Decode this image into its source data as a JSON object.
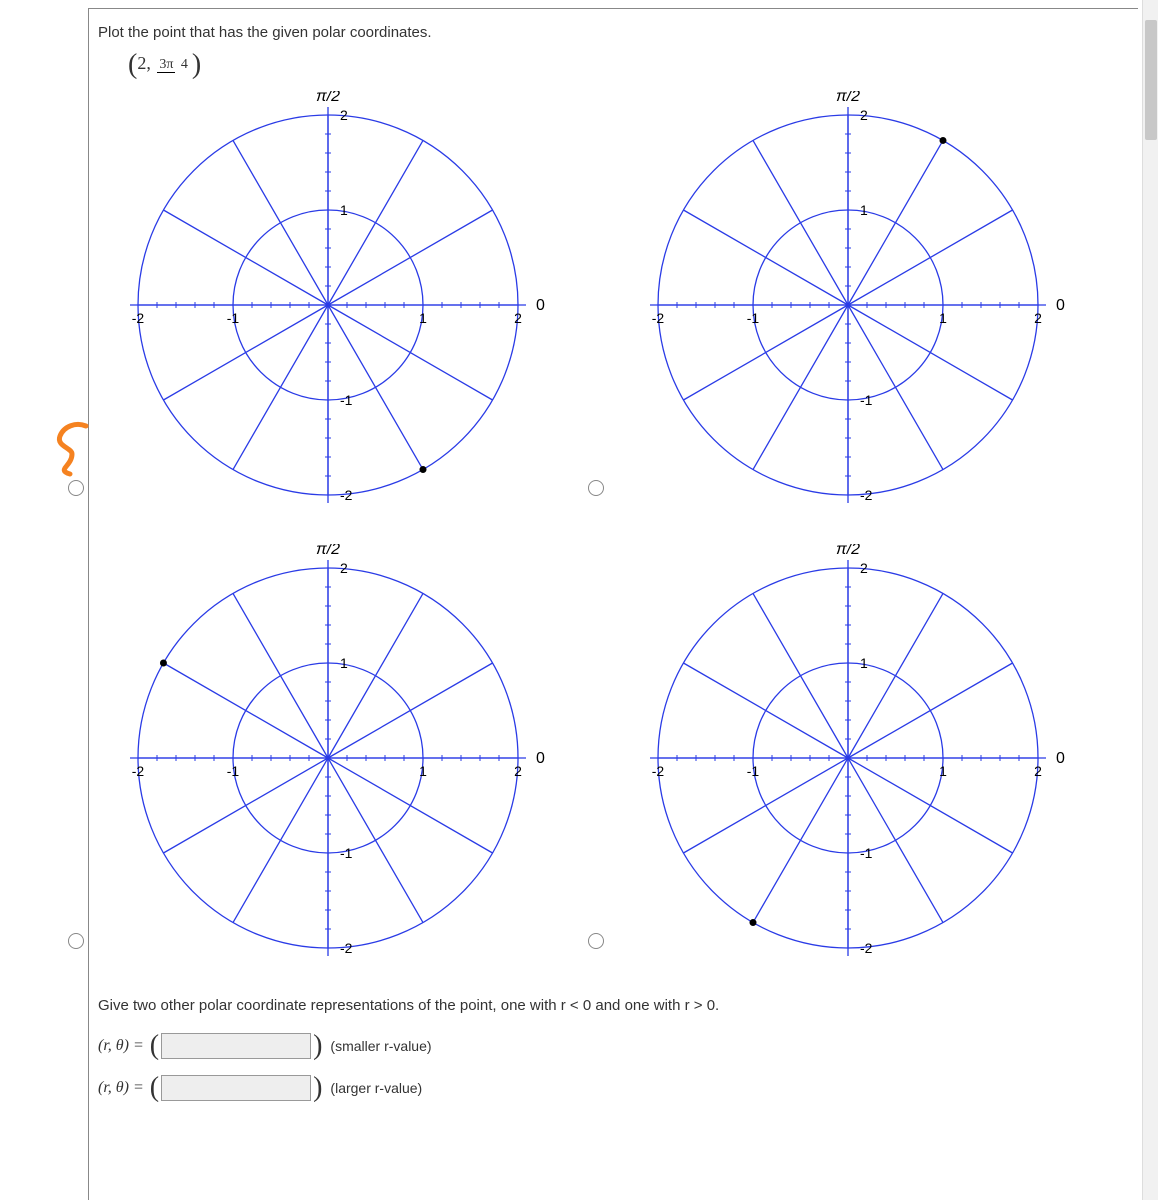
{
  "prompt": "Plot the point that has the given polar coordinates.",
  "given": {
    "r": "2",
    "theta_num": "3π",
    "theta_den": "4"
  },
  "polar": {
    "rmax": 2,
    "rings": [
      1,
      2
    ],
    "ticks_major": [
      -2,
      -1,
      1,
      2
    ],
    "axis_labels": {
      "top": "π/2",
      "right": "0"
    },
    "tick_labels": {
      "top_2": "2",
      "top_1": "1",
      "bot_1": "-1",
      "bot_2": "-2",
      "left_2": "-2",
      "left_1": "-1",
      "right_1": "1",
      "right_2": "2"
    },
    "line_color": "#2a3be6",
    "axis_color": "#2a3be6",
    "tick_color": "#000000",
    "point_color": "#000000",
    "point_radius": 3.5,
    "spoke_angles_deg": [
      0,
      30,
      60,
      90,
      120,
      150,
      180,
      210,
      240,
      270,
      300,
      330
    ]
  },
  "options": [
    {
      "id": "A",
      "point_angle_deg": -60,
      "point_r": 2
    },
    {
      "id": "B",
      "point_angle_deg": 60,
      "point_r": 2
    },
    {
      "id": "C",
      "point_angle_deg": 150,
      "point_r": 2
    },
    {
      "id": "D",
      "point_angle_deg": -120,
      "point_r": 2
    }
  ],
  "below_prompt": "Give two other polar coordinate representations of the point, one with r < 0 and one with r > 0.",
  "answers": [
    {
      "lhs": "(r, θ) =",
      "value": "",
      "hint": "(smaller r-value)"
    },
    {
      "lhs": "(r, θ) =",
      "value": "",
      "hint": "(larger r-value)"
    }
  ],
  "colors": {
    "scribble": "#f58220"
  }
}
